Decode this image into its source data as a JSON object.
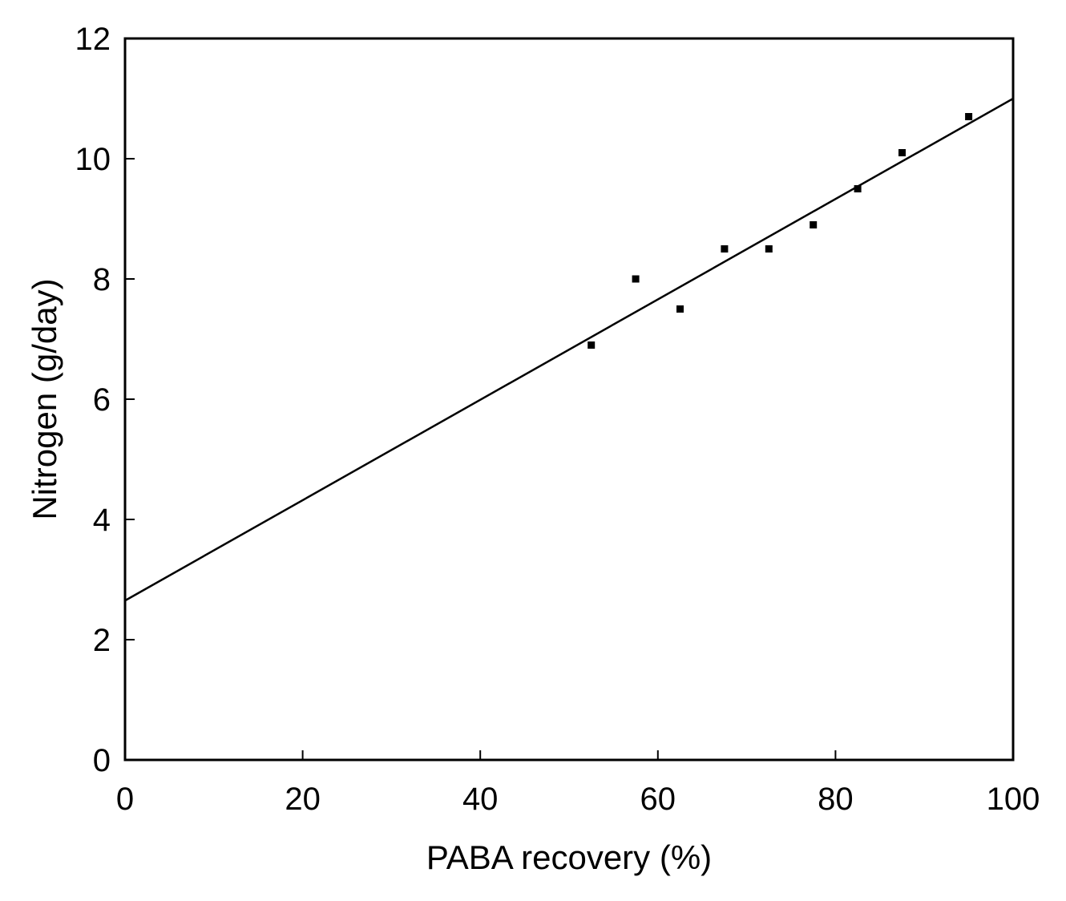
{
  "chart_data": {
    "type": "scatter",
    "title": "",
    "xlabel": "PABA recovery (%)",
    "ylabel": "Nitrogen (g/day)",
    "xlim": [
      0,
      100
    ],
    "ylim": [
      0,
      12
    ],
    "x_ticks": [
      0,
      20,
      40,
      60,
      80,
      100
    ],
    "y_ticks": [
      0,
      2,
      4,
      6,
      8,
      10,
      12
    ],
    "grid": false,
    "legend": "none",
    "colors": {
      "axis": "#000000",
      "points": "#000000",
      "line": "#000000"
    },
    "series": [
      {
        "type": "scatter",
        "x": [
          52.5,
          57.5,
          62.5,
          67.5,
          72.5,
          77.5,
          82.5,
          87.5,
          95.0
        ],
        "y": [
          6.9,
          8.0,
          7.5,
          8.5,
          8.5,
          8.9,
          9.5,
          10.1,
          10.7
        ]
      },
      {
        "type": "line",
        "x": [
          0,
          100
        ],
        "y": [
          2.65,
          11.0
        ]
      }
    ]
  }
}
